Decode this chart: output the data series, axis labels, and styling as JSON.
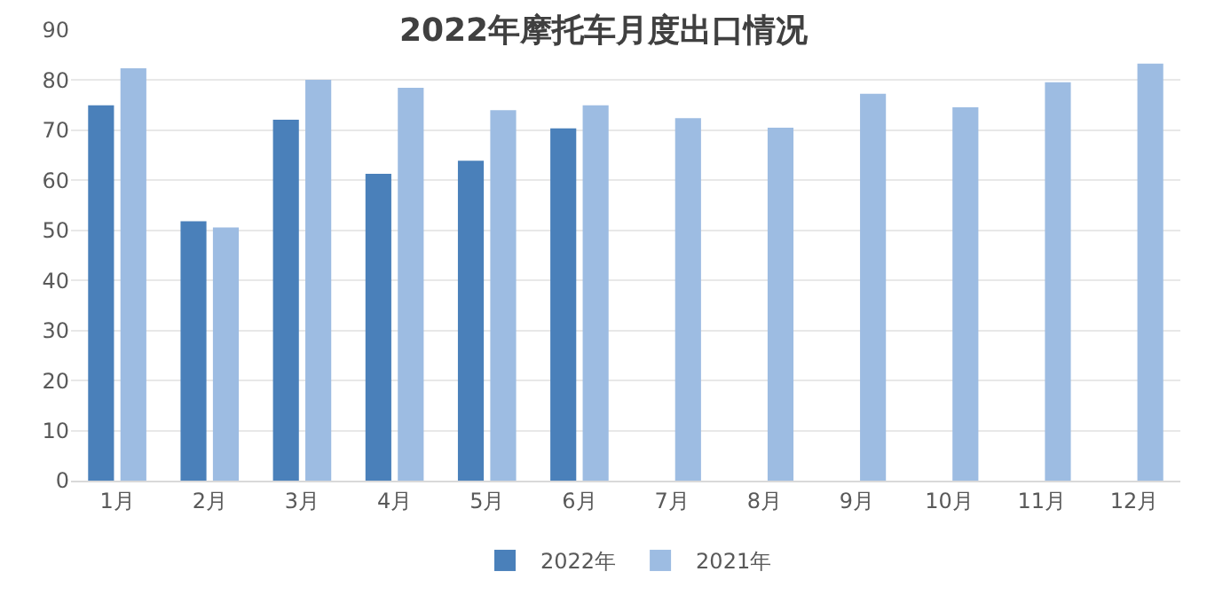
{
  "chart_data": {
    "type": "bar",
    "title": "2022年摩托车月度出口情况",
    "categories": [
      "1月",
      "2月",
      "3月",
      "4月",
      "5月",
      "6月",
      "7月",
      "8月",
      "9月",
      "10月",
      "11月",
      "12月"
    ],
    "series": [
      {
        "name": "2022年",
        "color": "#4a80ba",
        "values": [
          75,
          51.8,
          72.1,
          61.3,
          63.9,
          70.4,
          null,
          null,
          null,
          null,
          null,
          null
        ]
      },
      {
        "name": "2021年",
        "color": "#9dbce2",
        "values": [
          82.4,
          50.6,
          80.1,
          78.5,
          74.0,
          75.0,
          72.4,
          70.5,
          77.3,
          74.6,
          79.6,
          83.3
        ]
      }
    ],
    "ylim": [
      0,
      90
    ],
    "yticks": [
      0,
      10,
      20,
      30,
      40,
      50,
      60,
      70,
      80,
      90
    ],
    "grid": "y",
    "legend": "bottom"
  }
}
